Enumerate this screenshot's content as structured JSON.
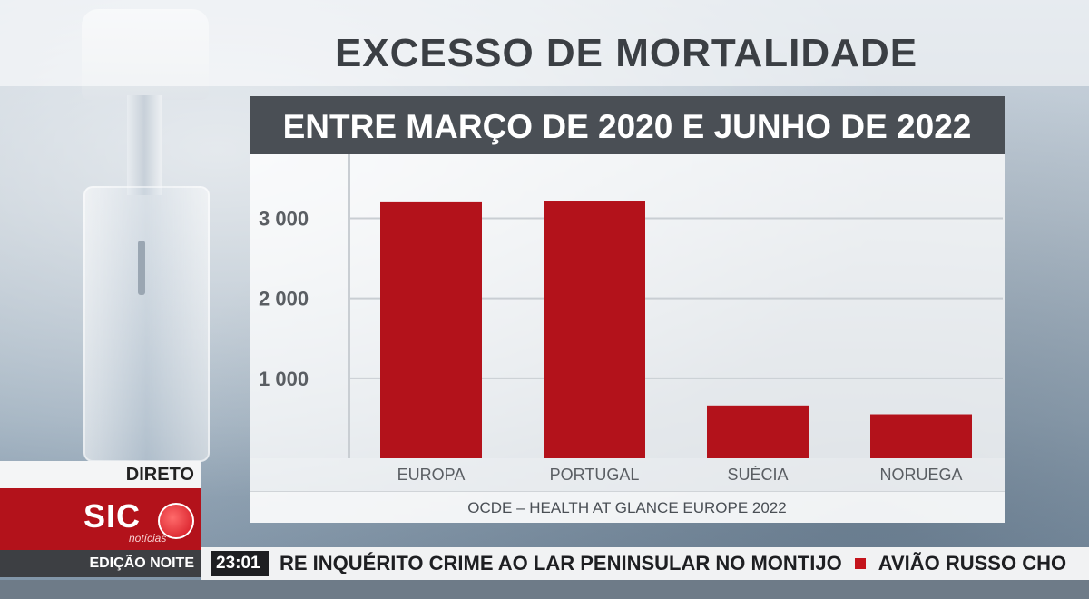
{
  "chart_data": {
    "type": "bar",
    "title": "EXCESSO DE MORTALIDADE",
    "subtitle": "ENTRE MARÇO DE 2020 E JUNHO DE 2022",
    "categories": [
      "EUROPA",
      "PORTUGAL",
      "SUÉCIA",
      "NORUEGA"
    ],
    "values": [
      3200,
      3210,
      660,
      550
    ],
    "ylim": [
      0,
      3800
    ],
    "yticks": [
      1000,
      2000,
      3000
    ],
    "ytick_labels": [
      "1 000",
      "2 000",
      "3 000"
    ],
    "grid": true,
    "source": "OCDE – HEALTH AT GLANCE EUROPE 2022",
    "bar_color": "#b3121b"
  },
  "broadcast": {
    "live_label": "DIRETO",
    "channel_name": "SIC",
    "channel_sub": "notícias",
    "program": "EDIÇÃO NOITE",
    "time": "23:01",
    "ticker_1": "RE INQUÉRITO CRIME AO LAR PENINSULAR NO MONTIJO",
    "ticker_2": "AVIÃO RUSSO CHO",
    "accent_color": "#b3121b"
  }
}
